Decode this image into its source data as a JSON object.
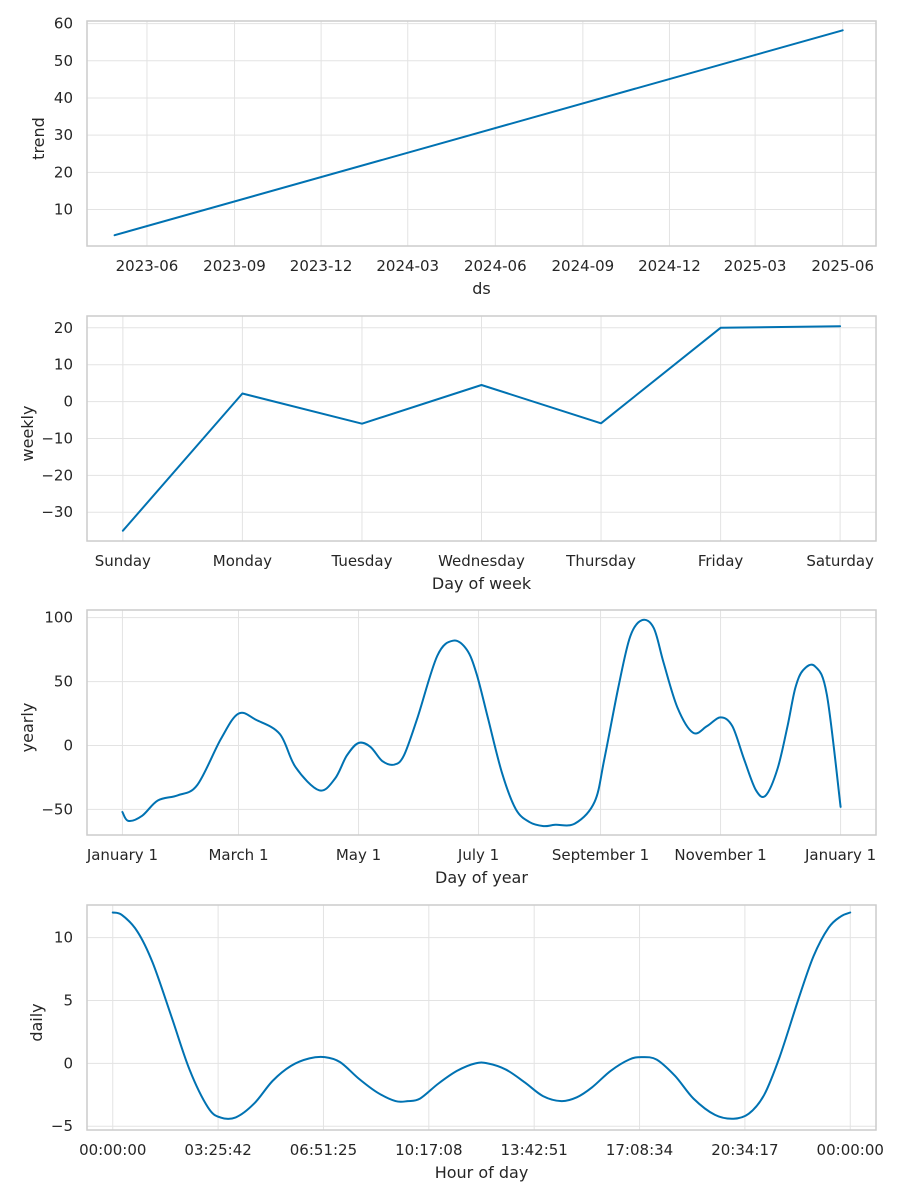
{
  "chart_data": [
    {
      "type": "line",
      "xlabel": "ds",
      "ylabel": "trend",
      "x_ticks": [
        "2023-06",
        "2023-09",
        "2023-12",
        "2024-03",
        "2024-06",
        "2024-09",
        "2024-12",
        "2025-03",
        "2025-06"
      ],
      "y_ticks": [
        10,
        20,
        30,
        40,
        50,
        60
      ],
      "xlim": [
        "2023-03-30",
        "2025-07-06"
      ],
      "ylim": [
        0.2,
        60.7
      ],
      "grid": true,
      "series": [
        {
          "x": [
            "2023-04-28",
            "2025-06-01"
          ],
          "values": [
            3.1,
            58.2
          ]
        }
      ]
    },
    {
      "type": "line",
      "xlabel": "Day of week",
      "ylabel": "weekly",
      "categories": [
        "Sunday",
        "Monday",
        "Tuesday",
        "Wednesday",
        "Thursday",
        "Friday",
        "Saturday"
      ],
      "y_ticks": [
        -30,
        -20,
        -10,
        0,
        10,
        20
      ],
      "ylim": [
        -37.8,
        23.2
      ],
      "grid": true,
      "series": [
        {
          "values": [
            -35.0,
            2.2,
            -6.0,
            4.5,
            -5.9,
            20.0,
            20.4
          ]
        }
      ]
    },
    {
      "type": "line",
      "xlabel": "Day of year",
      "ylabel": "yearly",
      "x_ticks": [
        "January 1",
        "March 1",
        "May 1",
        "July 1",
        "September 1",
        "November 1",
        "January 1"
      ],
      "x_tick_days": [
        0,
        59,
        120,
        181,
        243,
        304,
        365
      ],
      "y_ticks": [
        -50,
        0,
        50,
        100
      ],
      "xlim": [
        -18,
        383
      ],
      "ylim": [
        -70,
        106
      ],
      "grid": true,
      "series": [
        {
          "x": [
            0,
            3,
            10,
            18,
            28,
            38,
            50,
            59,
            68,
            80,
            88,
            100,
            108,
            114,
            120,
            126,
            132,
            138,
            143,
            150,
            160,
            168,
            175,
            180,
            186,
            193,
            200,
            207,
            214,
            220,
            230,
            240,
            245,
            252,
            258,
            264,
            270,
            275,
            282,
            290,
            297,
            304,
            310,
            316,
            322,
            327,
            333,
            338,
            342,
            346,
            352,
            358,
            365
          ],
          "values": [
            -52,
            -59,
            -55,
            -43,
            -39,
            -31,
            5,
            25,
            20,
            9,
            -17,
            -35,
            -26,
            -8,
            2,
            -1,
            -12,
            -15,
            -8,
            22,
            70,
            82,
            75,
            56,
            20,
            -22,
            -50,
            -60,
            -63,
            -62,
            -61,
            -44,
            -10,
            45,
            85,
            98,
            92,
            65,
            30,
            10,
            15,
            22,
            15,
            -11,
            -35,
            -39,
            -18,
            15,
            45,
            59,
            62,
            40,
            -48
          ]
        }
      ]
    },
    {
      "type": "line",
      "xlabel": "Hour of day",
      "ylabel": "daily",
      "x_ticks": [
        "00:00:00",
        "03:25:42",
        "06:51:25",
        "10:17:08",
        "13:42:51",
        "17:08:34",
        "20:34:17",
        "00:00:00"
      ],
      "y_ticks": [
        -5,
        0,
        5,
        10
      ],
      "xlim": [
        -0.838,
        24.838
      ],
      "ylim": [
        -5.3,
        12.6
      ],
      "grid": true,
      "series": [
        {
          "x": [
            0,
            0.3,
            0.8,
            1.3,
            1.9,
            2.5,
            3.1,
            3.5,
            4.0,
            4.6,
            5.2,
            5.8,
            6.4,
            6.9,
            7.4,
            8.0,
            8.6,
            9.2,
            9.6,
            10.0,
            10.6,
            11.2,
            11.8,
            12.2,
            12.8,
            13.4,
            14.0,
            14.6,
            15.1,
            15.6,
            16.2,
            16.8,
            17.2,
            17.7,
            18.3,
            18.9,
            19.6,
            20.2,
            20.7,
            21.2,
            21.7,
            22.3,
            22.8,
            23.3,
            23.7,
            24
          ],
          "values": [
            12.0,
            11.8,
            10.5,
            8.0,
            3.8,
            -0.5,
            -3.5,
            -4.3,
            -4.3,
            -3.2,
            -1.4,
            -0.2,
            0.4,
            0.5,
            0.1,
            -1.2,
            -2.3,
            -3.0,
            -3.0,
            -2.8,
            -1.6,
            -0.6,
            0.0,
            0.0,
            -0.5,
            -1.5,
            -2.6,
            -3.0,
            -2.7,
            -1.9,
            -0.6,
            0.3,
            0.5,
            0.3,
            -1.0,
            -2.8,
            -4.1,
            -4.4,
            -4.0,
            -2.5,
            0.5,
            5.0,
            8.5,
            10.8,
            11.7,
            12.0
          ]
        }
      ]
    }
  ]
}
